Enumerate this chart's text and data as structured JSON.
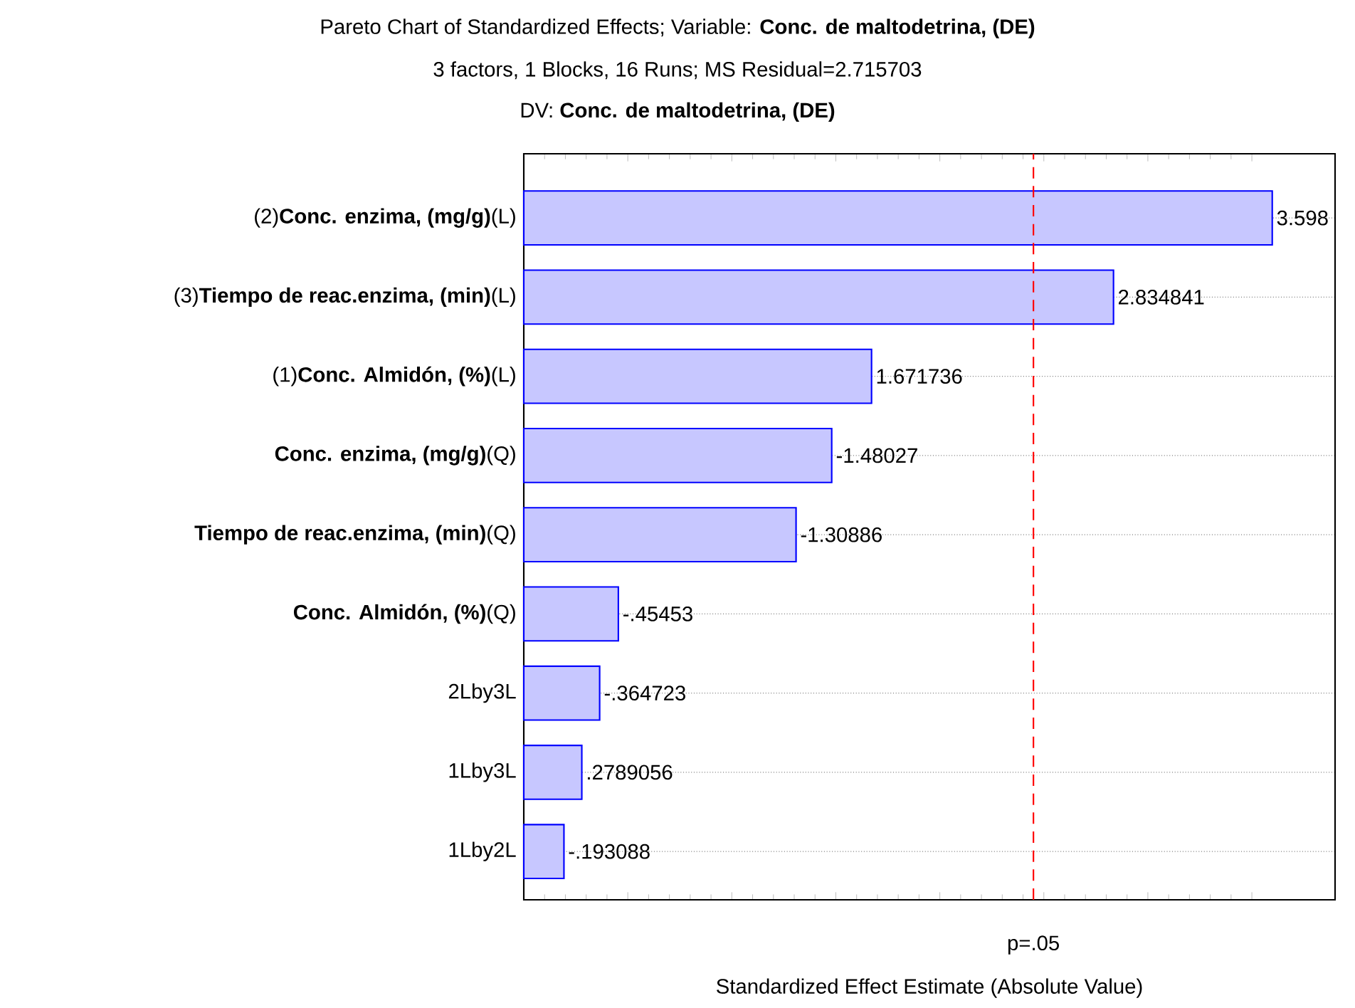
{
  "chart_data": {
    "type": "bar",
    "orientation": "horizontal",
    "title": "Pareto Chart of Standardized Effects; Variable: **Conc. de maltodetrina, (DE)**",
    "subtitle": "3 factors, 1 Blocks, 16 Runs; MS Residual=2.715703",
    "annotations": [
      "DV: **Conc. de maltodetrina, (DE)**",
      {
        "text": "-1.48027",
        "x": 1.48027,
        "y": "**Conc. enzima, (mg/g)**(Q)"
      },
      {
        "text": "-1.30886",
        "x": 1.30886,
        "y": "**Tiempo de reac.enzima, (min)**(Q)"
      },
      {
        "text": "-.45453",
        "x": 0.45453,
        "y": "**Conc. Almidón, (%)**(Q)"
      },
      {
        "text": "-.364723",
        "x": 0.364723,
        "y": "2Lby3L"
      },
      {
        "text": "-.193088",
        "x": 0.193088,
        "y": "1Lby2L"
      }
    ],
    "xlabel": "Standardized Effect Estimate (Absolute Value)",
    "categories": [
      "(2)**Conc. enzima, (mg/g)**(L)",
      "(3)**Tiempo de reac.enzima, (min)**(L)",
      "(1)**Conc. Almidón, (%)**(L)",
      "**Conc. enzima, (mg/g)**(Q)",
      "**Tiempo de reac.enzima, (min)**(Q)",
      "**Conc. Almidón, (%)**(Q)",
      "2Lby3L",
      "1Lby3L",
      "1Lby2L"
    ],
    "values": [
      3.598,
      2.834841,
      1.671736,
      1.48027,
      1.30886,
      0.45453,
      0.364723,
      0.2789056,
      0.193088
    ],
    "value_labels": [
      "3.598",
      "2.834841",
      "1.671736",
      null,
      null,
      null,
      null,
      ".2789056",
      null
    ],
    "color": "#0000ff",
    "xlim": [
      0,
      3.9
    ],
    "xticks": [
      {
        "value": 0,
        "label": null
      },
      {
        "value": 0.5,
        "label": null
      },
      {
        "value": 1,
        "label": null
      },
      {
        "value": 1.5,
        "label": null
      },
      {
        "value": 2,
        "label": null
      },
      {
        "value": 2.5,
        "label": null
      },
      {
        "value": 3,
        "label": null
      },
      {
        "value": 3.5,
        "label": null
      }
    ],
    "ref_lines": [
      {
        "axis": "x",
        "value": 2.45,
        "label": "p=.05",
        "color": "#ff0000",
        "line_style": "dashed"
      }
    ],
    "grid": "y",
    "tick_labels": "y"
  }
}
